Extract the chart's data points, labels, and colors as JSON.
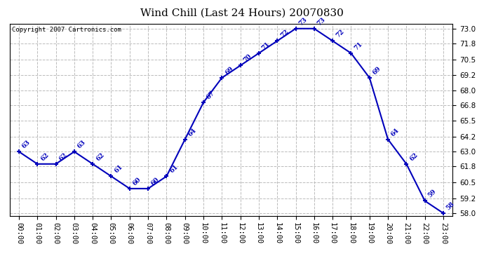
{
  "title": "Wind Chill (Last 24 Hours) 20070830",
  "copyright": "Copyright 2007 Cartronics.com",
  "hours": [
    0,
    1,
    2,
    3,
    4,
    5,
    6,
    7,
    8,
    9,
    10,
    11,
    12,
    13,
    14,
    15,
    16,
    17,
    18,
    19,
    20,
    21,
    22,
    23
  ],
  "values": [
    63,
    62,
    62,
    63,
    62,
    61,
    60,
    60,
    61,
    64,
    67,
    69,
    70,
    71,
    72,
    73,
    73,
    72,
    71,
    69,
    64,
    62,
    59,
    58
  ],
  "ylim": [
    57.8,
    73.4
  ],
  "yticks": [
    58.0,
    59.2,
    60.5,
    61.8,
    63.0,
    64.2,
    65.5,
    66.8,
    68.0,
    69.2,
    70.5,
    71.8,
    73.0
  ],
  "line_color": "#0000bb",
  "marker_color": "#0000bb",
  "grid_color": "#bbbbbb",
  "background_color": "#ffffff",
  "title_fontsize": 11,
  "label_fontsize": 6.5,
  "copyright_fontsize": 6.5,
  "tick_fontsize": 7.5
}
